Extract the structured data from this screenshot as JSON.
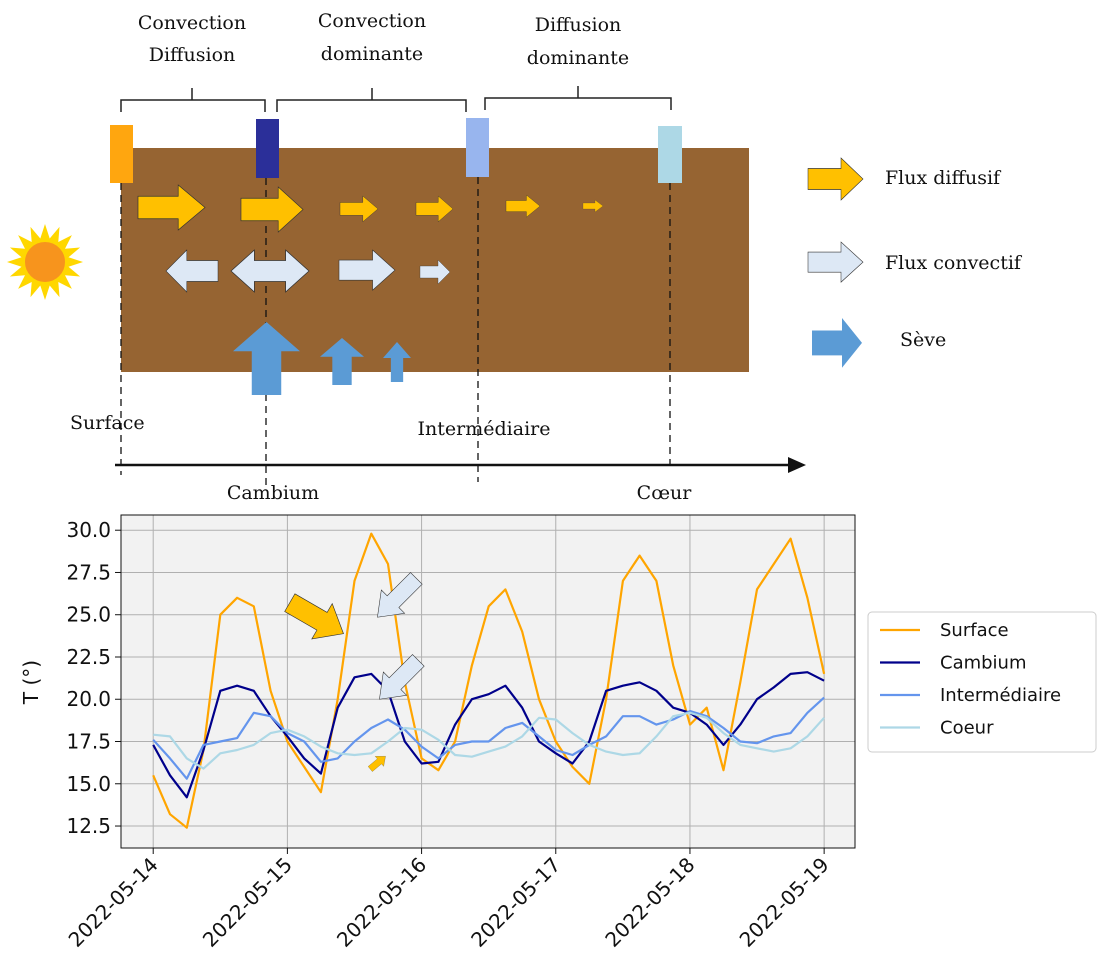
{
  "diagram": {
    "zones": [
      [
        "Convection",
        "Diffusion"
      ],
      [
        "Convection",
        "dominante"
      ],
      [
        "Diffusion",
        "dominante"
      ]
    ],
    "legend": [
      "Flux diffusif",
      "Flux convectif",
      "Sève"
    ],
    "positions": [
      "Surface",
      "Cambium",
      "Intermédiaire",
      "Cœur"
    ]
  },
  "chart_data": {
    "type": "line",
    "ylabel": "T (°)",
    "x": [
      0,
      0.125,
      0.25,
      0.375,
      0.5,
      0.625,
      0.75,
      0.875,
      1,
      1.125,
      1.25,
      1.375,
      1.5,
      1.625,
      1.75,
      1.875,
      2,
      2.125,
      2.25,
      2.375,
      2.5,
      2.625,
      2.75,
      2.875,
      3,
      3.125,
      3.25,
      3.375,
      3.5,
      3.625,
      3.75,
      3.875,
      4,
      4.125,
      4.25,
      4.375,
      4.5,
      4.625,
      4.75,
      4.875,
      5
    ],
    "xlim": [
      -0.24,
      5.23
    ],
    "xticks": [
      {
        "value": 0,
        "label": "2022-05-14"
      },
      {
        "value": 1,
        "label": "2022-05-15"
      },
      {
        "value": 2,
        "label": "2022-05-16"
      },
      {
        "value": 3,
        "label": "2022-05-17"
      },
      {
        "value": 4,
        "label": "2022-05-18"
      },
      {
        "value": 5,
        "label": "2022-05-19"
      }
    ],
    "ylim": [
      11.2,
      30.9
    ],
    "yticks": [
      12.5,
      {
        "value": 15,
        "label": "15.0"
      },
      17.5,
      {
        "value": 20,
        "label": "20.0"
      },
      22.5,
      {
        "value": 25,
        "label": "25.0"
      },
      27.5,
      {
        "value": 30,
        "label": "30.0"
      }
    ],
    "grid": true,
    "legend": "right",
    "series": [
      {
        "name": "Surface",
        "color": "#ffa500",
        "values": [
          15.5,
          13.2,
          12.4,
          17.0,
          25.0,
          26.0,
          25.5,
          20.5,
          17.5,
          16.0,
          14.5,
          20.0,
          27.0,
          29.8,
          28.0,
          21.0,
          16.5,
          15.8,
          17.5,
          22.0,
          25.5,
          26.5,
          24.0,
          20.0,
          17.5,
          16.0,
          15.0,
          20.0,
          27.0,
          28.5,
          27.0,
          22.0,
          18.5,
          19.5,
          15.8,
          21.0,
          26.5,
          28.0,
          29.5,
          26.0,
          21.5
        ]
      },
      {
        "name": "Cambium",
        "color": "#00008b",
        "values": [
          17.3,
          15.5,
          14.2,
          17.0,
          20.5,
          20.8,
          20.5,
          19.0,
          17.8,
          16.5,
          15.6,
          19.5,
          21.3,
          21.5,
          20.5,
          17.5,
          16.2,
          16.3,
          18.5,
          20.0,
          20.3,
          20.8,
          19.5,
          17.5,
          16.8,
          16.2,
          17.5,
          20.5,
          20.8,
          21.0,
          20.5,
          19.5,
          19.2,
          18.5,
          17.3,
          18.5,
          20.0,
          20.7,
          21.5,
          21.6,
          21.1
        ]
      },
      {
        "name": "Intermédiaire",
        "color": "#6495ed",
        "values": [
          17.6,
          16.5,
          15.3,
          17.3,
          17.5,
          17.7,
          19.2,
          19.0,
          18.0,
          17.5,
          16.3,
          16.5,
          17.5,
          18.3,
          18.8,
          18.2,
          17.2,
          16.5,
          17.3,
          17.5,
          17.5,
          18.3,
          18.6,
          17.8,
          17.0,
          16.7,
          17.3,
          17.8,
          19.0,
          19.0,
          18.5,
          18.8,
          19.3,
          19.0,
          18.3,
          17.5,
          17.4,
          17.8,
          18.0,
          19.2,
          20.1
        ]
      },
      {
        "name": "Coeur",
        "color": "#add8e6",
        "values": [
          17.9,
          17.8,
          16.5,
          15.9,
          16.8,
          17.0,
          17.3,
          18.0,
          18.2,
          17.8,
          17.2,
          16.8,
          16.7,
          16.8,
          17.5,
          18.3,
          18.2,
          17.6,
          16.7,
          16.6,
          16.9,
          17.2,
          17.8,
          18.9,
          18.8,
          18.0,
          17.3,
          16.9,
          16.7,
          16.8,
          17.8,
          19.0,
          19.2,
          18.9,
          18.0,
          17.3,
          17.1,
          16.9,
          17.1,
          17.8,
          18.9
        ]
      }
    ]
  }
}
